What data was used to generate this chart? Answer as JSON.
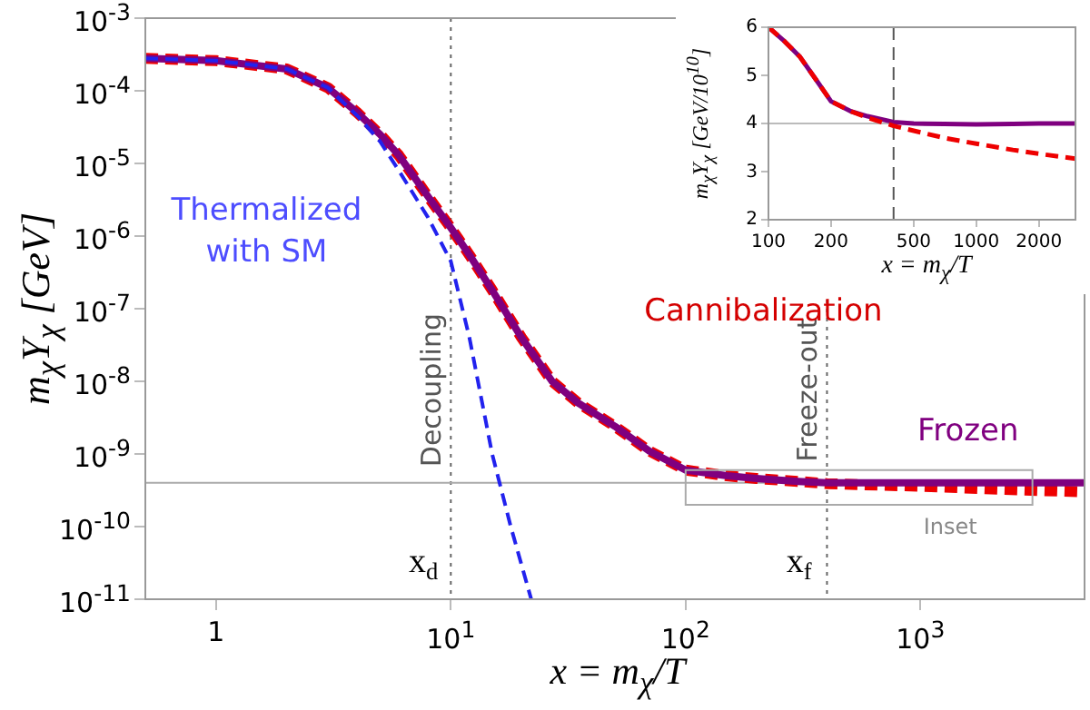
{
  "chart_data": [
    {
      "type": "line",
      "xlabel": "x = m$_{χ}$/T",
      "ylabel": "m$_{χ}$Y$_{χ}$ [GeV]",
      "log": "xy",
      "grid": false,
      "legend": false,
      "xlim": [
        0.5,
        5000
      ],
      "xticks": [
        1,
        {
          "value": 10,
          "label": "10$^{1}$"
        },
        {
          "value": 100,
          "label": "10$^{2}$"
        },
        {
          "value": 1000,
          "label": "10$^{3}$"
        }
      ],
      "ylim": [
        1e-11,
        0.001
      ],
      "yticks": [
        {
          "value": 1e-11,
          "label": "10$^{-11}$"
        },
        {
          "value": 1e-10,
          "label": "10$^{-10}$"
        },
        {
          "value": 1e-09,
          "label": "10$^{-9}$"
        },
        {
          "value": 1e-08,
          "label": "10$^{-8}$"
        },
        {
          "value": 1e-07,
          "label": "10$^{-7}$"
        },
        {
          "value": 1e-06,
          "label": "10$^{-6}$"
        },
        {
          "value": 1e-05,
          "label": "10$^{-5}$"
        },
        {
          "value": 0.0001,
          "label": "10$^{-4}$"
        },
        {
          "value": 0.001,
          "label": "10$^{-3}$"
        }
      ],
      "series": [
        {
          "color": "#ee0000",
          "line_style": "dashed",
          "x": [
            0.5,
            1,
            2,
            3,
            4,
            5,
            6,
            8,
            10,
            12,
            15,
            20,
            27,
            35,
            50,
            70,
            100,
            150,
            200,
            300,
            400,
            700,
            1000,
            2000,
            5000
          ],
          "values": [
            0.00028,
            0.00026,
            0.0002,
            0.00011,
            5e-05,
            2.5e-05,
            1.3e-05,
            3.5e-06,
            1.3e-06,
            5.5e-07,
            1.8e-07,
            4e-08,
            1e-08,
            5e-09,
            2.4e-09,
            1.1e-09,
            6e-10,
            5e-10,
            4.6e-10,
            4.2e-10,
            3.9e-10,
            3.7e-10,
            3.6e-10,
            3.3e-10,
            3e-10
          ]
        },
        {
          "color": "#7f007f",
          "line_style": "solid",
          "x": [
            0.5,
            1,
            2,
            3,
            4,
            5,
            6,
            8,
            10,
            12,
            15,
            20,
            27,
            35,
            50,
            70,
            100,
            150,
            200,
            300,
            400,
            700,
            1000,
            2000,
            5000
          ],
          "values": [
            0.00028,
            0.00026,
            0.0002,
            0.00011,
            5e-05,
            2.5e-05,
            1.3e-05,
            3.5e-06,
            1.3e-06,
            5.5e-07,
            1.8e-07,
            4e-08,
            1e-08,
            5e-09,
            2.4e-09,
            1.1e-09,
            6e-10,
            5e-10,
            4.6e-10,
            4.2e-10,
            4e-10,
            4e-10,
            4e-10,
            4e-10,
            4e-10
          ]
        },
        {
          "color": "#2222ee",
          "line_style": "dashed",
          "x": [
            0.5,
            1,
            2,
            3,
            4,
            5,
            6,
            8,
            10,
            12,
            15,
            18,
            22
          ],
          "values": [
            0.00028,
            0.00026,
            0.0002,
            0.00011,
            4.5e-05,
            2e-05,
            8e-06,
            1.8e-06,
            4.5e-07,
            4e-08,
            1e-09,
            1e-10,
            1e-11
          ]
        }
      ],
      "ref_lines": [
        {
          "axis": "x",
          "value": 10,
          "label": "Decoupling",
          "color": "#666666",
          "line_style": "dotted"
        },
        {
          "axis": "x",
          "value": 400,
          "label": "Freeze-out",
          "color": "#666666",
          "line_style": "dotted"
        },
        {
          "axis": "y",
          "value": 4e-10,
          "label": null,
          "color": "#aaaaaa",
          "line_style": "solid"
        }
      ],
      "annotations": [
        "Thermalized\nwith SM",
        "Cannibalization",
        "Frozen",
        "x$_{d}$",
        "x$_{f}$",
        "Inset"
      ]
    },
    {
      "type": "line",
      "xlabel": "x = m$_{χ}$/T",
      "ylabel": "m$_{χ}$Y$_{χ}$ [GeV/10$^{10}$]",
      "log": "x",
      "grid": false,
      "legend": false,
      "xlim": [
        100,
        3000
      ],
      "xticks": [
        100,
        200,
        500,
        1000,
        2000
      ],
      "ylim": [
        2,
        6
      ],
      "yticks": [
        2,
        3,
        4,
        5,
        6
      ],
      "series": [
        {
          "color": "#7f007f",
          "line_style": "solid",
          "x": [
            100,
            120,
            142,
            170,
            200,
            250,
            300,
            400,
            500,
            700,
            1000,
            1500,
            2000,
            3000
          ],
          "values": [
            6,
            5.7,
            5.38,
            4.9,
            4.46,
            4.25,
            4.15,
            4.03,
            4,
            3.99,
            3.98,
            3.99,
            4,
            4
          ]
        },
        {
          "color": "#ee0000",
          "line_style": "dashed",
          "x": [
            100,
            120,
            142,
            170,
            200,
            250,
            300,
            400,
            500,
            700,
            1000,
            1500,
            2000,
            3000
          ],
          "values": [
            6,
            5.7,
            5.38,
            4.9,
            4.46,
            4.25,
            4.12,
            3.95,
            3.85,
            3.7,
            3.58,
            3.45,
            3.37,
            3.27
          ]
        }
      ],
      "ref_lines": [
        {
          "axis": "y",
          "value": 4,
          "label": null,
          "color": "#bbbbbb",
          "line_style": "solid"
        },
        {
          "axis": "x",
          "value": 400,
          "label": null,
          "color": "#555555",
          "line_style": "dashed"
        }
      ]
    }
  ]
}
